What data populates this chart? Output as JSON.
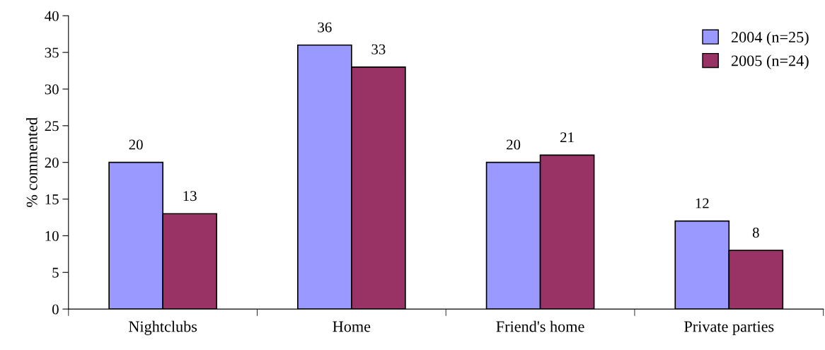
{
  "chart_data": {
    "type": "bar",
    "ylabel": "% commented",
    "categories": [
      "Nightclubs",
      "Home",
      "Friend's home",
      "Private parties"
    ],
    "series": [
      {
        "name": "2004 (n=25)",
        "color": "#9999ff",
        "values": [
          20,
          36,
          20,
          12
        ]
      },
      {
        "name": "2005 (n=24)",
        "color": "#993366",
        "values": [
          13,
          33,
          21,
          8
        ]
      }
    ],
    "ylim": [
      0,
      40
    ],
    "yticks": [
      0,
      5,
      10,
      15,
      20,
      25,
      30,
      35,
      40
    ],
    "data_labels": true,
    "legend": "top right",
    "grid": false
  }
}
